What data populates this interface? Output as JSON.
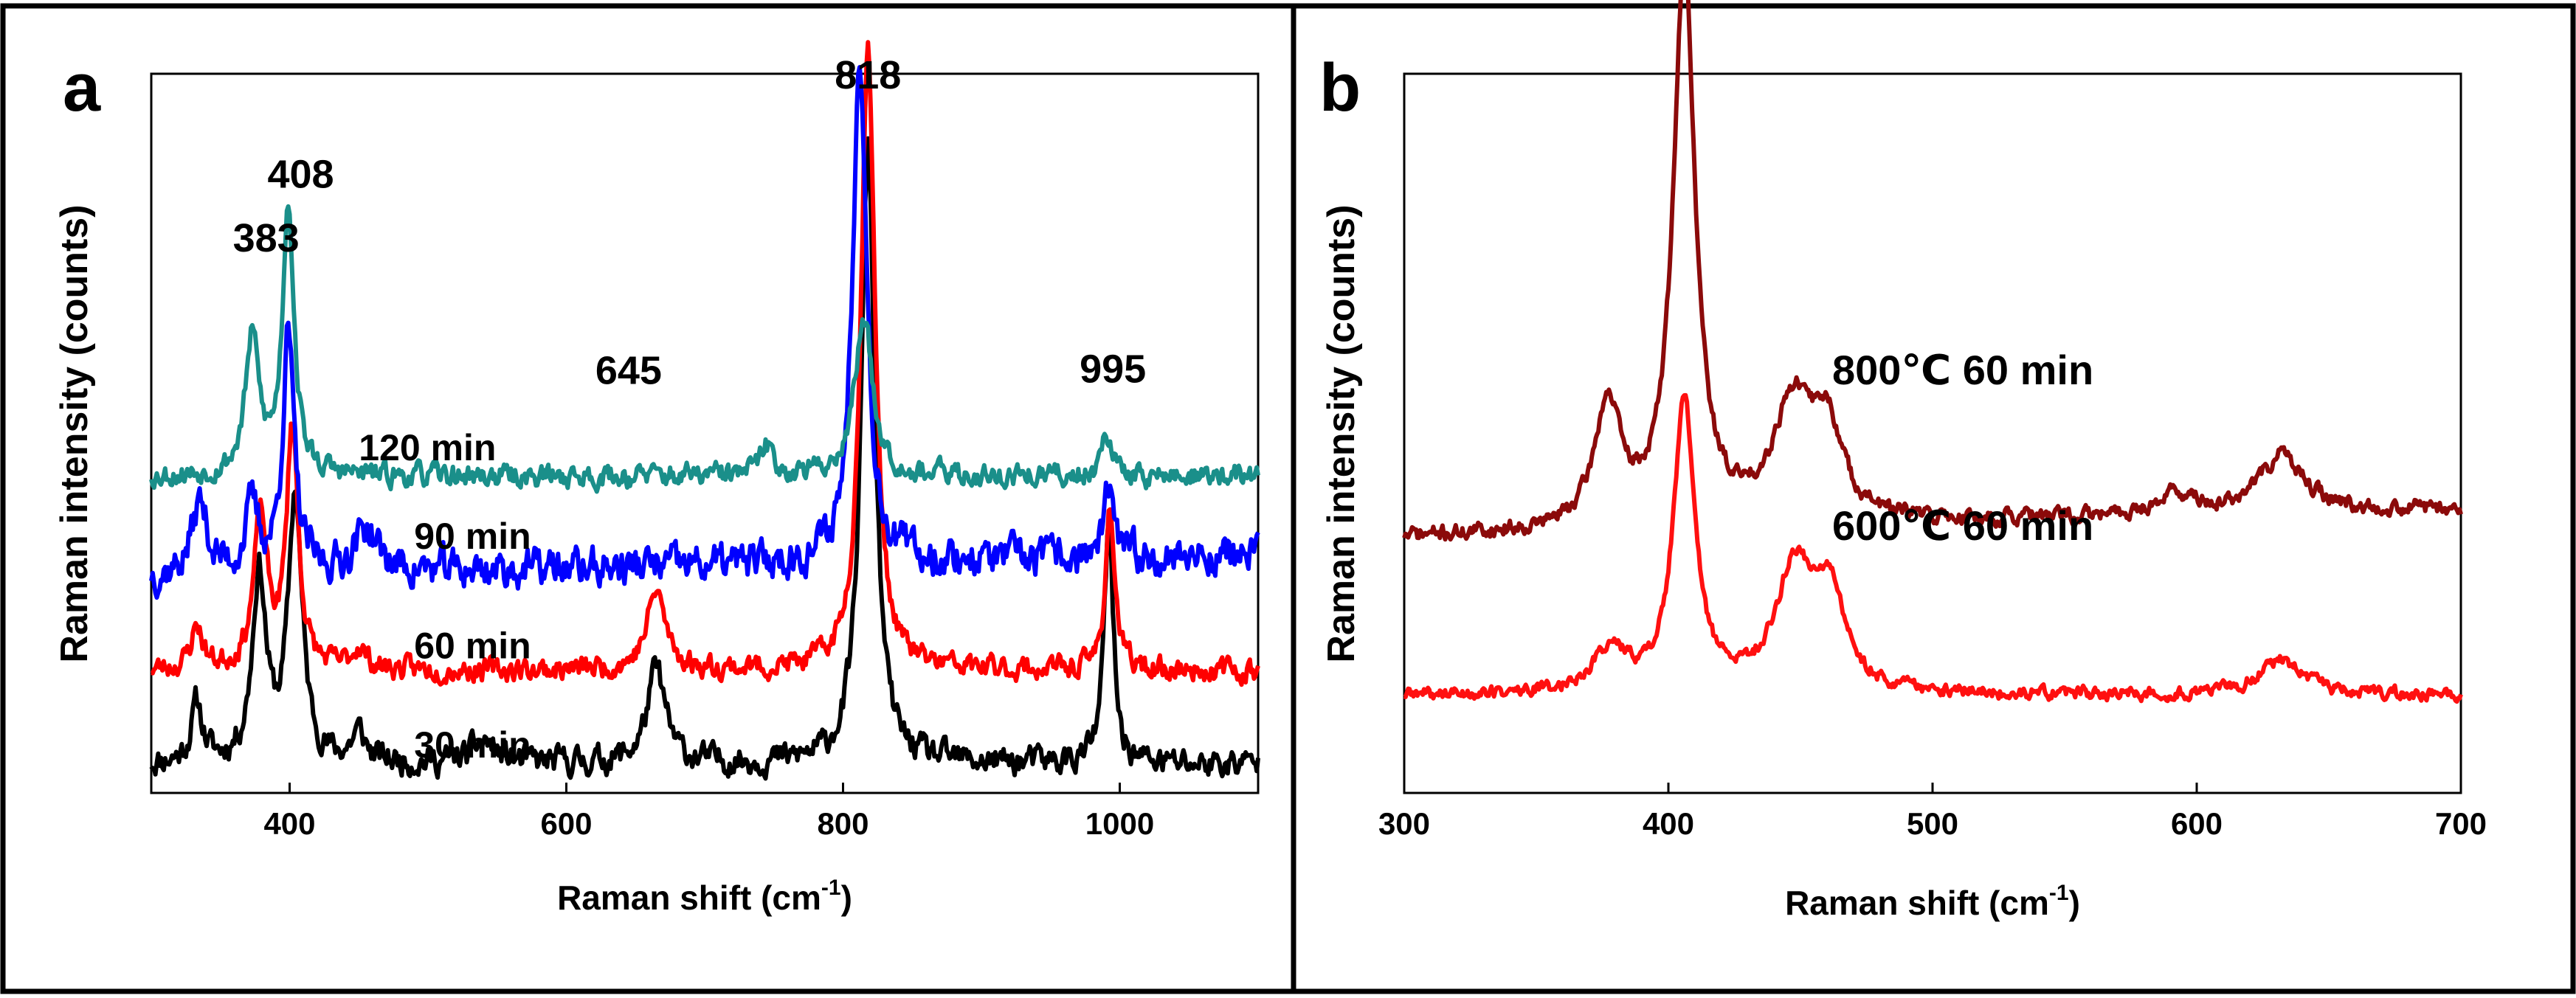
{
  "chart_data": [
    {
      "panel": "a",
      "type": "line",
      "xlabel": "Raman shift (cm",
      "xlabel_sup": "-1",
      "xlabel_end": ")",
      "ylabel": "Raman intensity (counts)",
      "xlim": [
        300,
        1100
      ],
      "ylim": [
        0,
        1
      ],
      "xticks": [
        400,
        600,
        800,
        1000
      ],
      "peak_annotations": [
        {
          "text": "383",
          "x": 383
        },
        {
          "text": "408",
          "x": 408
        },
        {
          "text": "645",
          "x": 645
        },
        {
          "text": "818",
          "x": 818
        },
        {
          "text": "995",
          "x": 995
        }
      ],
      "series": [
        {
          "name": "30 min",
          "label": "30 min",
          "color": "#000000",
          "label_x": 490,
          "baseline": 0.04,
          "noise": 0.022,
          "slope": 0.0,
          "seed": 11,
          "peaks": [
            [
              333,
              0.08,
              5
            ],
            [
              378,
              0.26,
              6
            ],
            [
              404,
              0.37,
              6
            ],
            [
              450,
              0.04,
              6
            ],
            [
              540,
              0.03,
              10
            ],
            [
              665,
              0.13,
              8
            ],
            [
              818,
              0.86,
              6
            ],
            [
              992,
              0.33,
              4
            ]
          ]
        },
        {
          "name": "60 min",
          "label": "60 min",
          "color": "#ff0000",
          "label_x": 490,
          "baseline": 0.17,
          "noise": 0.018,
          "slope": 0.0,
          "seed": 23,
          "peaks": [
            [
              333,
              0.06,
              5
            ],
            [
              379,
              0.21,
              6
            ],
            [
              402,
              0.34,
              5
            ],
            [
              450,
              0.03,
              6
            ],
            [
              665,
              0.11,
              8
            ],
            [
              818,
              0.88,
              6
            ],
            [
              993,
              0.23,
              4
            ]
          ]
        },
        {
          "name": "90 min",
          "label": "90 min",
          "color": "#0000ff",
          "label_x": 490,
          "baseline": 0.3,
          "noise": 0.03,
          "slope": 4e-05,
          "seed": 37,
          "peaks": [
            [
              335,
              0.1,
              7
            ],
            [
              373,
              0.09,
              6
            ],
            [
              399,
              0.33,
              5
            ],
            [
              455,
              0.06,
              10
            ],
            [
              812,
              0.72,
              6
            ],
            [
              992,
              0.09,
              4
            ]
          ]
        },
        {
          "name": "120 min",
          "label": "120 min",
          "color": "#1a8f8a",
          "label_x": 450,
          "baseline": 0.44,
          "noise": 0.018,
          "slope": 0.0,
          "seed": 53,
          "peaks": [
            [
              373,
              0.19,
              6
            ],
            [
              399,
              0.38,
              5
            ],
            [
              745,
              0.04,
              6
            ],
            [
              815,
              0.22,
              8
            ],
            [
              990,
              0.07,
              4
            ]
          ]
        }
      ]
    },
    {
      "panel": "b",
      "type": "line",
      "xlabel": "Raman shift (cm",
      "xlabel_sup": "-1",
      "xlabel_end": ")",
      "ylabel": "Raman intensity (counts)",
      "xlim": [
        300,
        700
      ],
      "ylim": [
        0,
        1
      ],
      "xticks": [
        300,
        400,
        500,
        600,
        700
      ],
      "series": [
        {
          "name": "800℃ 60 min",
          "label": "800℃ 60 min",
          "color": "#8b0a0a",
          "label_x": 462,
          "baseline": 0.355,
          "noise": 0.012,
          "slope": 0.0001,
          "seed": 71,
          "peaks": [
            [
              377,
              0.17,
              6
            ],
            [
              406,
              0.78,
              5
            ],
            [
              447,
              0.16,
              9
            ],
            [
              460,
              0.12,
              7
            ],
            [
              592,
              0.03,
              8
            ],
            [
              632,
              0.08,
              10
            ]
          ]
        },
        {
          "name": "600℃ 60 min",
          "label": "600℃ 60 min",
          "color": "#ff1010",
          "label_x": 462,
          "baseline": 0.135,
          "noise": 0.01,
          "slope": 0.0,
          "seed": 89,
          "peaks": [
            [
              378,
              0.06,
              8
            ],
            [
              406,
              0.4,
              5
            ],
            [
              448,
              0.17,
              9
            ],
            [
              461,
              0.12,
              7
            ],
            [
              632,
              0.05,
              10
            ]
          ]
        }
      ]
    }
  ],
  "panel_letters": [
    "a",
    "b"
  ]
}
